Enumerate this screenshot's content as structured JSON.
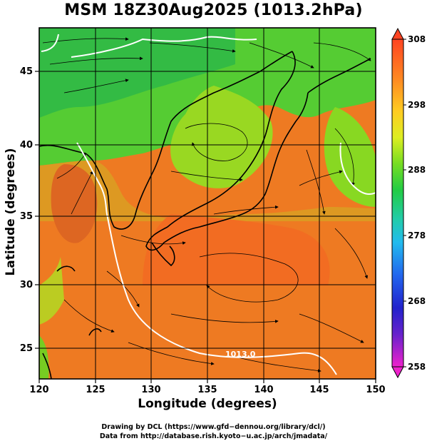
{
  "title": "MSM 18Z30Aug2025 (1013.2hPa)",
  "map": {
    "xlabel": "Longitude (degrees)",
    "ylabel": "Latitude  (degrees)",
    "lon_range": [
      120,
      150
    ],
    "lat_range": [
      22.4,
      47.6
    ],
    "lon_ticks": [
      "120",
      "125",
      "130",
      "135",
      "140",
      "145",
      "150"
    ],
    "lat_ticks": [
      "25",
      "30",
      "35",
      "40",
      "45"
    ],
    "grid": true,
    "contour_label": "1013.0",
    "colors": {
      "cool": "#33cc33",
      "mid": "#aadd22",
      "warm": "#ee7722",
      "hot": "#ff5522",
      "contour": "#ffffff",
      "grid": "#000000"
    }
  },
  "colorbar": {
    "min": 258,
    "max": 308,
    "tick_labels": [
      "308",
      "298",
      "288",
      "278",
      "268",
      "258"
    ],
    "tick_values": [
      308,
      298,
      288,
      278,
      268,
      258
    ]
  },
  "credits": {
    "line1": "Drawing by DCL (https://www.gfd−dennou.org/library/dcl/)",
    "line2": "Data from http://database.rish.kyoto−u.ac.jp/arch/jmadata/"
  }
}
